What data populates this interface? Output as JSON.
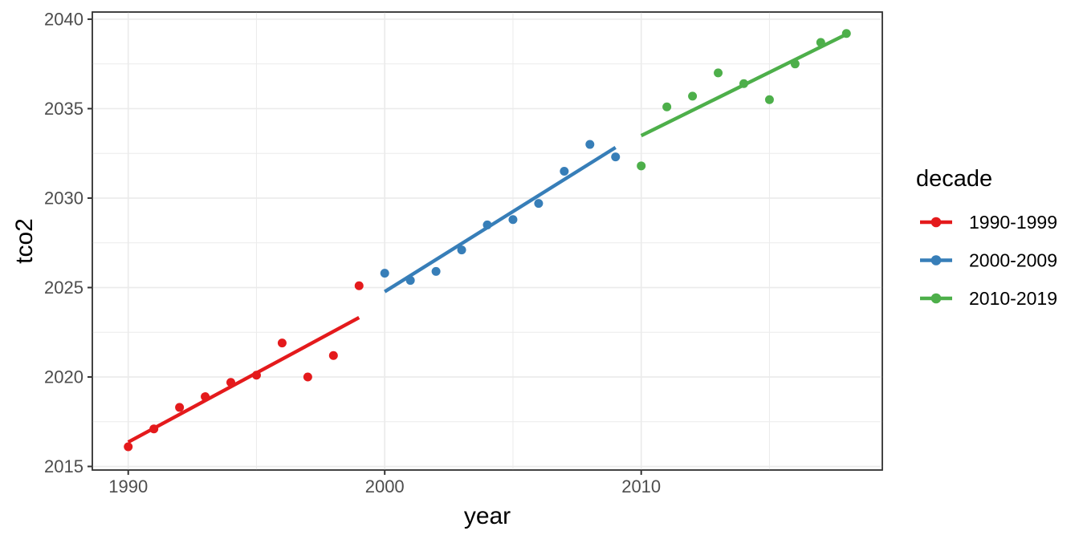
{
  "chart_data": {
    "type": "scatter",
    "xlabel": "year",
    "ylabel": "tco2",
    "legend_title": "decade",
    "legend_position": "right",
    "grid": true,
    "xlim": [
      1988.6,
      2019.4
    ],
    "ylim": [
      2014.8,
      2040.4
    ],
    "x_ticks": [
      1990,
      2000,
      2010
    ],
    "y_ticks": [
      2015,
      2020,
      2025,
      2030,
      2035,
      2040
    ],
    "x_minor_ticks": [
      1995,
      2005,
      2015
    ],
    "y_minor_ticks": [
      2017.5,
      2022.5,
      2027.5,
      2032.5,
      2037.5
    ],
    "series": [
      {
        "name": "1990-1999",
        "color": "#E41A1C",
        "fit": "linear",
        "x": [
          1990,
          1991,
          1992,
          1993,
          1994,
          1995,
          1996,
          1997,
          1998,
          1999
        ],
        "y": [
          2016.1,
          2017.1,
          2018.3,
          2018.9,
          2019.7,
          2020.1,
          2021.9,
          2020.0,
          2021.2,
          2025.1
        ]
      },
      {
        "name": "2000-2009",
        "color": "#377EB8",
        "fit": "linear",
        "x": [
          2000,
          2001,
          2002,
          2003,
          2004,
          2005,
          2006,
          2007,
          2008,
          2009
        ],
        "y": [
          2025.8,
          2025.4,
          2025.9,
          2027.1,
          2028.5,
          2028.8,
          2029.7,
          2031.5,
          2033.0,
          2032.3
        ]
      },
      {
        "name": "2010-2019",
        "color": "#4DAF4A",
        "fit": "linear",
        "x": [
          2010,
          2011,
          2012,
          2013,
          2014,
          2015,
          2016,
          2017,
          2018
        ],
        "y": [
          2031.8,
          2035.1,
          2035.7,
          2037.0,
          2036.4,
          2035.5,
          2037.5,
          2038.7,
          2039.2
        ]
      }
    ],
    "theme": {
      "background": "#FFFFFF",
      "panel_background": "#FFFFFF",
      "panel_border": "#333333",
      "grid_color": "#EBEBEB",
      "tick_mark_color": "#333333",
      "tick_label_color": "#4D4D4D",
      "axis_title_color": "#000000"
    }
  }
}
